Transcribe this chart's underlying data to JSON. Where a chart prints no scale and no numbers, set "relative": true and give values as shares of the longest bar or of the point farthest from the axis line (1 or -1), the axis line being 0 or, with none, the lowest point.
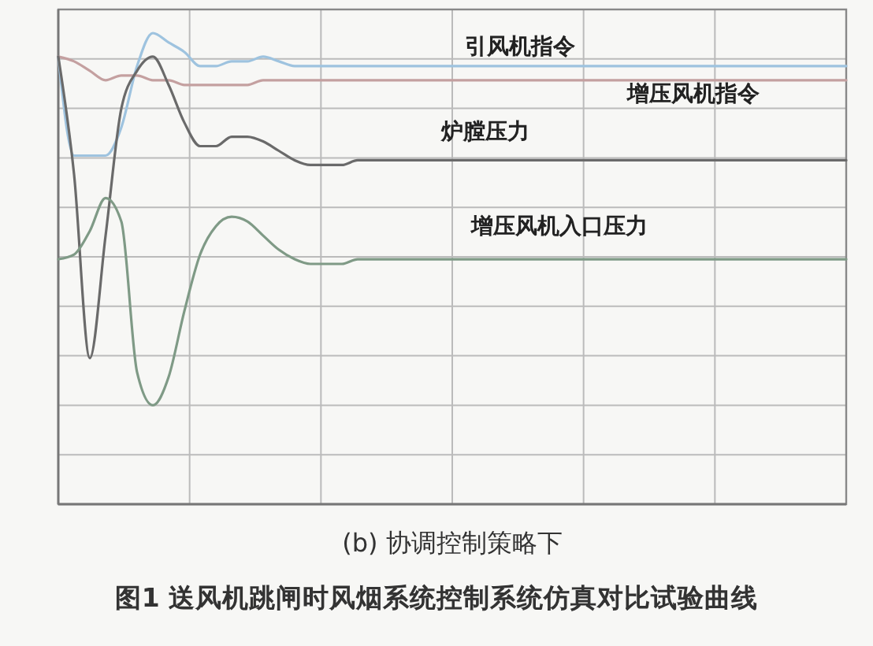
{
  "chart_data": {
    "type": "line",
    "relative": true,
    "title": "图1  送风机跳闸时风烟系统控制系统仿真对比试验曲线",
    "subtitle": "(b) 协调控制策略下",
    "grid": true,
    "categories": [
      null,
      null,
      null,
      null,
      null,
      null,
      null,
      null,
      null,
      null,
      null,
      null,
      null,
      null,
      null,
      null,
      null,
      null,
      null,
      null,
      null,
      null,
      null,
      null,
      null,
      null,
      null,
      null,
      null,
      null,
      null,
      null,
      null,
      null,
      null,
      null,
      null,
      null,
      null,
      null,
      null,
      null,
      null,
      null,
      null,
      null,
      null,
      null,
      null,
      null,
      null
    ],
    "series": [
      {
        "name": "引风机指令",
        "color": "#9ec3df",
        "values": [
          0.95,
          0.74,
          0.74,
          0.74,
          0.8,
          0.93,
          1,
          0.98,
          0.96,
          0.93,
          0.93,
          0.94,
          0.94,
          0.95,
          0.94,
          0.93,
          0.93,
          0.93,
          0.93,
          0.93,
          0.93,
          0.93,
          0.93,
          0.93,
          0.93,
          0.93,
          0.93,
          0.93,
          0.93,
          0.93,
          0.93,
          0.93,
          0.93,
          0.93,
          0.93,
          0.93,
          0.93,
          0.93,
          0.93,
          0.93,
          0.93,
          0.93,
          0.93,
          0.93,
          0.93,
          0.93,
          0.93,
          0.93,
          0.93,
          0.93,
          0.93
        ]
      },
      {
        "name": "增压风机指令",
        "color": "#c4a0a0",
        "values": [
          0.95,
          0.94,
          0.92,
          0.9,
          0.91,
          0.91,
          0.9,
          0.9,
          0.89,
          0.89,
          0.89,
          0.89,
          0.89,
          0.9,
          0.9,
          0.9,
          0.9,
          0.9,
          0.9,
          0.9,
          0.9,
          0.9,
          0.9,
          0.9,
          0.9,
          0.9,
          0.9,
          0.9,
          0.9,
          0.9,
          0.9,
          0.9,
          0.9,
          0.9,
          0.9,
          0.9,
          0.9,
          0.9,
          0.9,
          0.9,
          0.9,
          0.9,
          0.9,
          0.9,
          0.9,
          0.9,
          0.9,
          0.9,
          0.9,
          0.9,
          0.9
        ]
      },
      {
        "name": "炉膛压力",
        "color": "#6a6a6a",
        "values": [
          0.95,
          0.7,
          0.31,
          0.57,
          0.84,
          0.92,
          0.95,
          0.89,
          0.81,
          0.76,
          0.76,
          0.78,
          0.78,
          0.77,
          0.75,
          0.73,
          0.72,
          0.72,
          0.72,
          0.73,
          0.73,
          0.73,
          0.73,
          0.73,
          0.73,
          0.73,
          0.73,
          0.73,
          0.73,
          0.73,
          0.73,
          0.73,
          0.73,
          0.73,
          0.73,
          0.73,
          0.73,
          0.73,
          0.73,
          0.73,
          0.73,
          0.73,
          0.73,
          0.73,
          0.73,
          0.73,
          0.73,
          0.73,
          0.73,
          0.73,
          0.73
        ]
      },
      {
        "name": "增压风机入口压力",
        "color": "#7f9a86",
        "values": [
          0.52,
          0.53,
          0.58,
          0.65,
          0.6,
          0.28,
          0.21,
          0.27,
          0.41,
          0.53,
          0.59,
          0.61,
          0.6,
          0.57,
          0.54,
          0.52,
          0.51,
          0.51,
          0.51,
          0.52,
          0.52,
          0.52,
          0.52,
          0.52,
          0.52,
          0.52,
          0.52,
          0.52,
          0.52,
          0.52,
          0.52,
          0.52,
          0.52,
          0.52,
          0.52,
          0.52,
          0.52,
          0.52,
          0.52,
          0.52,
          0.52,
          0.52,
          0.52,
          0.52,
          0.52,
          0.52,
          0.52,
          0.52,
          0.52,
          0.52,
          0.52
        ]
      }
    ]
  }
}
